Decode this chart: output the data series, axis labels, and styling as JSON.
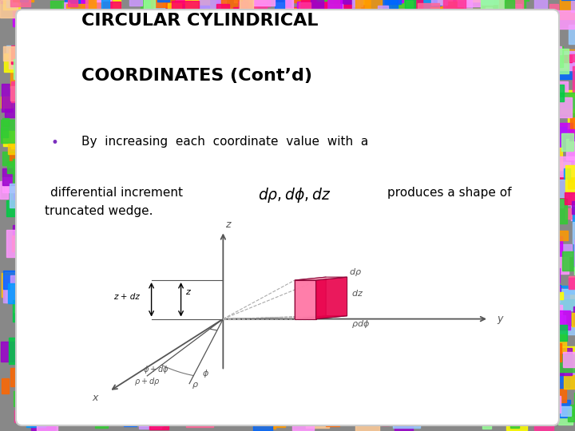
{
  "title_line1": "CIRCULAR CYLINDRICAL",
  "title_line2": "COORDINATES (Cont’d)",
  "title_color": "#000000",
  "title_fontsize": 16,
  "bullet_line1": "•  By  increasing  each  coordinate  value  with  a",
  "bullet_line2a": "differential increment",
  "bullet_line2b": "produces a shape of",
  "bullet_line3": "truncated wedge.",
  "math_text": "$d\\rho, d\\phi, dz$",
  "text_color": "#000000",
  "text_fontsize": 11,
  "bullet_color": "#7b2fbe",
  "panel_facecolor": "#ffffff",
  "panel_edgecolor": "#dddddd",
  "axis_color": "#666666",
  "wedge_front": "#ff69b4",
  "wedge_top": "#ffb6c1",
  "wedge_right": "#e8004a",
  "wedge_bottom": "#cc1166",
  "wedge_edge": "#880033",
  "dashed_color": "#aaaaaa",
  "guide_color": "#aaaaaa"
}
